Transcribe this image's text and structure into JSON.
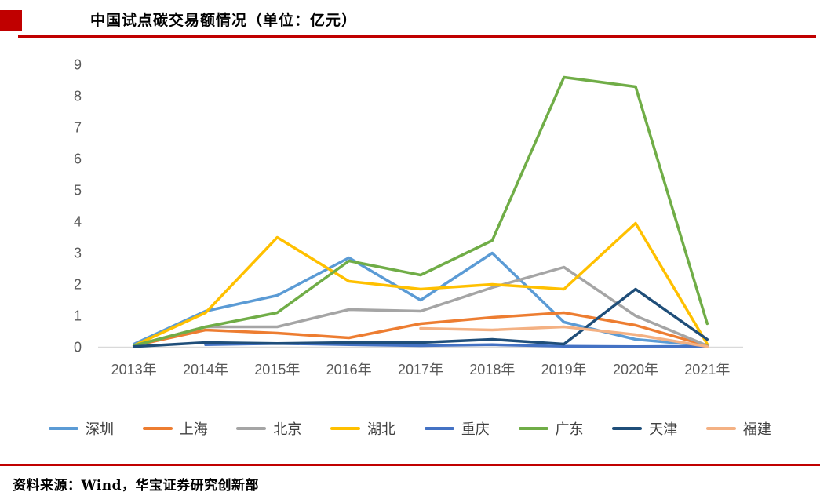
{
  "title": "中国试点碳交易额情况（单位：亿元）",
  "source": "资料来源：Wind，华宝证券研究创新部",
  "accent_red": "#c00000",
  "chart_data": {
    "type": "line",
    "title": "中国试点碳交易额情况（单位：亿元）",
    "unit": "亿元",
    "categories": [
      "2013年",
      "2014年",
      "2015年",
      "2016年",
      "2017年",
      "2018年",
      "2019年",
      "2020年",
      "2021年"
    ],
    "series": [
      {
        "name": "深圳",
        "color": "#5B9BD5",
        "values": [
          0.1,
          1.15,
          1.65,
          2.85,
          1.5,
          3.0,
          0.8,
          0.25,
          0.05
        ]
      },
      {
        "name": "上海",
        "color": "#ED7D31",
        "values": [
          0.05,
          0.55,
          0.45,
          0.3,
          0.75,
          0.95,
          1.1,
          0.7,
          0.05
        ]
      },
      {
        "name": "北京",
        "color": "#A5A5A5",
        "values": [
          0.05,
          0.65,
          0.65,
          1.2,
          1.15,
          1.9,
          2.55,
          1.0,
          0.05
        ]
      },
      {
        "name": "湖北",
        "color": "#FFC000",
        "values": [
          0.05,
          1.1,
          3.5,
          2.1,
          1.85,
          2.0,
          1.85,
          3.95,
          0.1
        ]
      },
      {
        "name": "重庆",
        "color": "#4472C4",
        "values": [
          null,
          0.08,
          0.12,
          0.08,
          0.05,
          0.08,
          0.03,
          0.02,
          0.03
        ]
      },
      {
        "name": "广东",
        "color": "#70AD47",
        "values": [
          0.05,
          0.65,
          1.1,
          2.75,
          2.3,
          3.4,
          8.6,
          8.3,
          0.75
        ]
      },
      {
        "name": "天津",
        "color": "#1F4E79",
        "values": [
          0.02,
          0.15,
          0.12,
          0.15,
          0.15,
          0.25,
          0.1,
          1.85,
          0.25
        ]
      },
      {
        "name": "福建",
        "color": "#F4B183",
        "values": [
          null,
          null,
          null,
          null,
          0.6,
          0.55,
          0.65,
          0.4,
          0.02
        ]
      }
    ],
    "ylim": [
      0,
      9
    ],
    "y_ticks": [
      0,
      1,
      2,
      3,
      4,
      5,
      6,
      7,
      8,
      9
    ],
    "grid": false,
    "legend_position": "bottom",
    "axis_color": "#D9D9D9",
    "tick_label_color": "#595959"
  }
}
